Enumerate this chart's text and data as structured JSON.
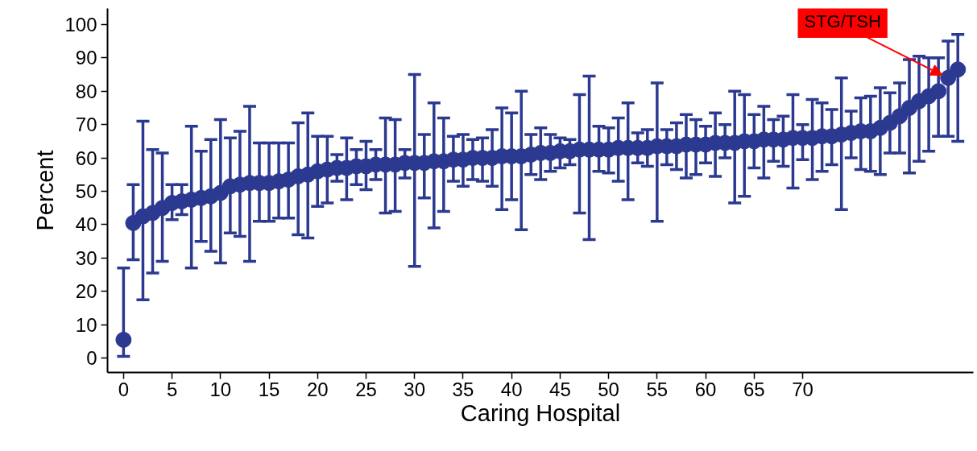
{
  "chart_data": {
    "type": "scatter",
    "xlabel": "Caring Hospital",
    "ylabel": "Percent",
    "x": [
      0,
      1,
      2,
      3,
      4,
      5,
      6,
      7,
      8,
      9,
      10,
      11,
      12,
      13,
      14,
      15,
      16,
      17,
      18,
      19,
      20,
      21,
      22,
      23,
      24,
      25,
      26,
      27,
      28,
      29,
      30,
      31,
      32,
      33,
      34,
      35,
      36,
      37,
      38,
      39,
      40,
      41,
      42,
      43,
      44,
      45,
      46,
      47,
      48,
      49,
      50,
      51,
      52,
      53,
      54,
      55,
      56,
      57,
      58,
      59,
      60,
      61,
      62,
      63,
      64,
      65,
      66,
      67,
      68,
      69,
      70,
      71,
      72,
      73,
      74,
      75,
      76,
      77,
      78,
      79,
      80,
      81,
      82,
      83,
      84,
      85,
      86
    ],
    "series": [
      {
        "color": "#2b3990",
        "values": [
          5.5,
          40.5,
          42.5,
          43.5,
          45,
          46.5,
          47,
          47.5,
          48,
          48.5,
          49.5,
          51.5,
          52,
          52.5,
          52.5,
          52.5,
          53,
          53.5,
          54.5,
          55,
          56,
          56.5,
          57,
          57,
          57.5,
          57.5,
          58,
          58,
          58,
          58.5,
          58.5,
          58.5,
          59,
          59,
          59.5,
          59.5,
          60,
          60,
          60,
          60.5,
          60.5,
          60.5,
          61,
          61.5,
          61.5,
          62,
          62,
          62.5,
          62.5,
          62.5,
          62.5,
          63,
          63,
          63,
          63,
          63.5,
          63.5,
          63.5,
          64,
          64,
          64,
          64.5,
          64.5,
          64.5,
          65,
          65,
          65.5,
          65.5,
          65.5,
          66,
          66,
          66,
          66.5,
          66.5,
          67,
          67.5,
          68,
          68,
          69,
          70.5,
          72.5,
          75,
          77,
          78.5,
          80,
          84,
          86.5
        ],
        "errors": [
          [
            0.5,
            27
          ],
          [
            29.5,
            52
          ],
          [
            17.5,
            71
          ],
          [
            25.5,
            62.5
          ],
          [
            29,
            61.5
          ],
          [
            41.5,
            52
          ],
          [
            43,
            52
          ],
          [
            27,
            69.5
          ],
          [
            35,
            62
          ],
          [
            32,
            65.5
          ],
          [
            28.5,
            71.5
          ],
          [
            37.5,
            66
          ],
          [
            36.5,
            68
          ],
          [
            29,
            75.5
          ],
          [
            41,
            64.5
          ],
          [
            41,
            64.5
          ],
          [
            42,
            64.5
          ],
          [
            42,
            64.5
          ],
          [
            37,
            70.5
          ],
          [
            36,
            73.5
          ],
          [
            45.5,
            66.5
          ],
          [
            46.5,
            66.5
          ],
          [
            53,
            61
          ],
          [
            47.5,
            66
          ],
          [
            52,
            62.5
          ],
          [
            50.5,
            65
          ],
          [
            53.5,
            62.5
          ],
          [
            43.5,
            72
          ],
          [
            44,
            71.5
          ],
          [
            54,
            62.5
          ],
          [
            27.5,
            85
          ],
          [
            48,
            67
          ],
          [
            39,
            76.5
          ],
          [
            44,
            72
          ],
          [
            53,
            66.5
          ],
          [
            51.5,
            67
          ],
          [
            53.5,
            65.5
          ],
          [
            53,
            66
          ],
          [
            51.5,
            68.5
          ],
          [
            44.5,
            75
          ],
          [
            47.5,
            73.5
          ],
          [
            38.5,
            80
          ],
          [
            55,
            67
          ],
          [
            53.5,
            69
          ],
          [
            56,
            67
          ],
          [
            57,
            66
          ],
          [
            58,
            65.5
          ],
          [
            43.5,
            79
          ],
          [
            35.5,
            84.5
          ],
          [
            56,
            69.5
          ],
          [
            55.5,
            69
          ],
          [
            53,
            72
          ],
          [
            47.5,
            76.5
          ],
          [
            58.5,
            67.5
          ],
          [
            57.5,
            68.5
          ],
          [
            41,
            82.5
          ],
          [
            58,
            68.5
          ],
          [
            56.5,
            70.5
          ],
          [
            54,
            73
          ],
          [
            55,
            71.5
          ],
          [
            58.5,
            69.5
          ],
          [
            54.5,
            73.5
          ],
          [
            60,
            70
          ],
          [
            46.5,
            80
          ],
          [
            48.5,
            79
          ],
          [
            57,
            73
          ],
          [
            54,
            75.5
          ],
          [
            59,
            71.5
          ],
          [
            57.5,
            72.5
          ],
          [
            51,
            79
          ],
          [
            59.5,
            70
          ],
          [
            53.5,
            77.5
          ],
          [
            56,
            76.5
          ],
          [
            58,
            74.5
          ],
          [
            44.5,
            84
          ],
          [
            60,
            74
          ],
          [
            56.5,
            78
          ],
          [
            56,
            78.5
          ],
          [
            55,
            81
          ],
          [
            61.5,
            79.5
          ],
          [
            61.5,
            82.5
          ],
          [
            55.5,
            89.5
          ],
          [
            59,
            90.5
          ],
          [
            62,
            90
          ],
          [
            66.5,
            90
          ],
          [
            66.5,
            95
          ],
          [
            65,
            97
          ]
        ]
      }
    ],
    "xlim": [
      -1.65,
      87.6
    ],
    "ylim": [
      -4.3,
      104.8
    ],
    "xticks": [
      0,
      5,
      10,
      15,
      20,
      25,
      30,
      35,
      40,
      45,
      50,
      55,
      60,
      65,
      70
    ],
    "yticks": [
      0,
      10,
      20,
      30,
      40,
      50,
      60,
      70,
      80,
      90,
      100
    ],
    "grid": false,
    "marker": "circle",
    "annotations": [
      {
        "text": "STG/TSH",
        "x": 85,
        "y": 84
      }
    ]
  }
}
